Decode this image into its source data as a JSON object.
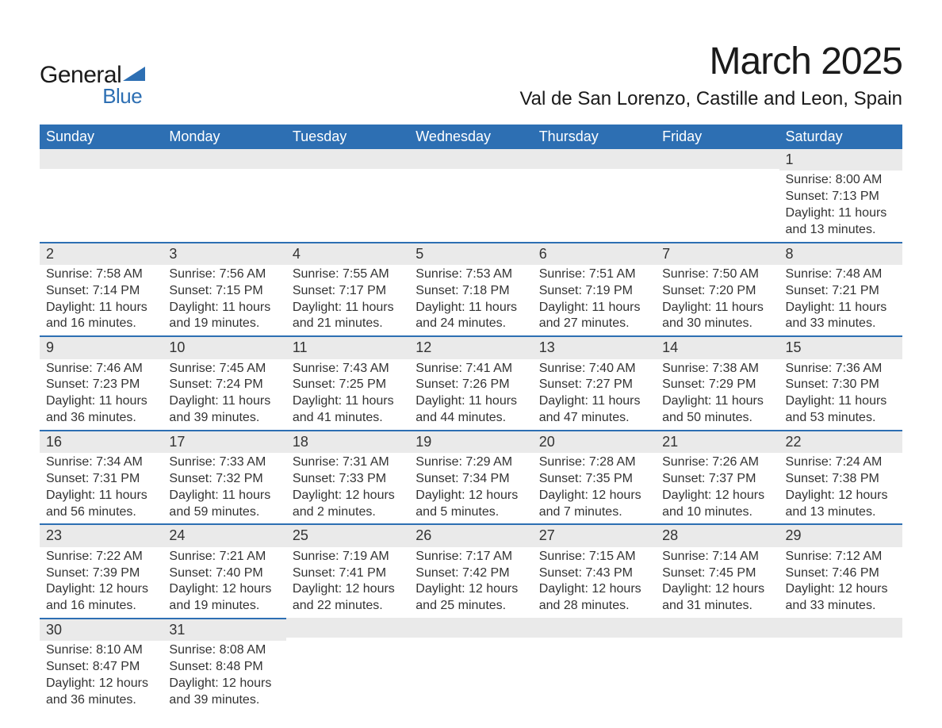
{
  "logo": {
    "text1": "General",
    "text2": "Blue",
    "triangle_color": "#2d6fb3"
  },
  "title": "March 2025",
  "location": "Val de San Lorenzo, Castille and Leon, Spain",
  "colors": {
    "header_bg": "#2d6fb3",
    "header_fg": "#ffffff",
    "daynum_bg": "#eaeaea",
    "day_border": "#2d6fb3",
    "text": "#333333",
    "background": "#ffffff"
  },
  "typography": {
    "title_fontsize": 48,
    "location_fontsize": 24,
    "weekday_fontsize": 18,
    "body_fontsize": 16
  },
  "weekdays": [
    "Sunday",
    "Monday",
    "Tuesday",
    "Wednesday",
    "Thursday",
    "Friday",
    "Saturday"
  ],
  "labels": {
    "sunrise": "Sunrise:",
    "sunset": "Sunset:",
    "daylight": "Daylight:"
  },
  "weeks": [
    [
      {
        "day": "",
        "sunrise": "",
        "sunset": "",
        "daylight": ""
      },
      {
        "day": "",
        "sunrise": "",
        "sunset": "",
        "daylight": ""
      },
      {
        "day": "",
        "sunrise": "",
        "sunset": "",
        "daylight": ""
      },
      {
        "day": "",
        "sunrise": "",
        "sunset": "",
        "daylight": ""
      },
      {
        "day": "",
        "sunrise": "",
        "sunset": "",
        "daylight": ""
      },
      {
        "day": "",
        "sunrise": "",
        "sunset": "",
        "daylight": ""
      },
      {
        "day": "1",
        "sunrise": "8:00 AM",
        "sunset": "7:13 PM",
        "daylight": "11 hours and 13 minutes."
      }
    ],
    [
      {
        "day": "2",
        "sunrise": "7:58 AM",
        "sunset": "7:14 PM",
        "daylight": "11 hours and 16 minutes."
      },
      {
        "day": "3",
        "sunrise": "7:56 AM",
        "sunset": "7:15 PM",
        "daylight": "11 hours and 19 minutes."
      },
      {
        "day": "4",
        "sunrise": "7:55 AM",
        "sunset": "7:17 PM",
        "daylight": "11 hours and 21 minutes."
      },
      {
        "day": "5",
        "sunrise": "7:53 AM",
        "sunset": "7:18 PM",
        "daylight": "11 hours and 24 minutes."
      },
      {
        "day": "6",
        "sunrise": "7:51 AM",
        "sunset": "7:19 PM",
        "daylight": "11 hours and 27 minutes."
      },
      {
        "day": "7",
        "sunrise": "7:50 AM",
        "sunset": "7:20 PM",
        "daylight": "11 hours and 30 minutes."
      },
      {
        "day": "8",
        "sunrise": "7:48 AM",
        "sunset": "7:21 PM",
        "daylight": "11 hours and 33 minutes."
      }
    ],
    [
      {
        "day": "9",
        "sunrise": "7:46 AM",
        "sunset": "7:23 PM",
        "daylight": "11 hours and 36 minutes."
      },
      {
        "day": "10",
        "sunrise": "7:45 AM",
        "sunset": "7:24 PM",
        "daylight": "11 hours and 39 minutes."
      },
      {
        "day": "11",
        "sunrise": "7:43 AM",
        "sunset": "7:25 PM",
        "daylight": "11 hours and 41 minutes."
      },
      {
        "day": "12",
        "sunrise": "7:41 AM",
        "sunset": "7:26 PM",
        "daylight": "11 hours and 44 minutes."
      },
      {
        "day": "13",
        "sunrise": "7:40 AM",
        "sunset": "7:27 PM",
        "daylight": "11 hours and 47 minutes."
      },
      {
        "day": "14",
        "sunrise": "7:38 AM",
        "sunset": "7:29 PM",
        "daylight": "11 hours and 50 minutes."
      },
      {
        "day": "15",
        "sunrise": "7:36 AM",
        "sunset": "7:30 PM",
        "daylight": "11 hours and 53 minutes."
      }
    ],
    [
      {
        "day": "16",
        "sunrise": "7:34 AM",
        "sunset": "7:31 PM",
        "daylight": "11 hours and 56 minutes."
      },
      {
        "day": "17",
        "sunrise": "7:33 AM",
        "sunset": "7:32 PM",
        "daylight": "11 hours and 59 minutes."
      },
      {
        "day": "18",
        "sunrise": "7:31 AM",
        "sunset": "7:33 PM",
        "daylight": "12 hours and 2 minutes."
      },
      {
        "day": "19",
        "sunrise": "7:29 AM",
        "sunset": "7:34 PM",
        "daylight": "12 hours and 5 minutes."
      },
      {
        "day": "20",
        "sunrise": "7:28 AM",
        "sunset": "7:35 PM",
        "daylight": "12 hours and 7 minutes."
      },
      {
        "day": "21",
        "sunrise": "7:26 AM",
        "sunset": "7:37 PM",
        "daylight": "12 hours and 10 minutes."
      },
      {
        "day": "22",
        "sunrise": "7:24 AM",
        "sunset": "7:38 PM",
        "daylight": "12 hours and 13 minutes."
      }
    ],
    [
      {
        "day": "23",
        "sunrise": "7:22 AM",
        "sunset": "7:39 PM",
        "daylight": "12 hours and 16 minutes."
      },
      {
        "day": "24",
        "sunrise": "7:21 AM",
        "sunset": "7:40 PM",
        "daylight": "12 hours and 19 minutes."
      },
      {
        "day": "25",
        "sunrise": "7:19 AM",
        "sunset": "7:41 PM",
        "daylight": "12 hours and 22 minutes."
      },
      {
        "day": "26",
        "sunrise": "7:17 AM",
        "sunset": "7:42 PM",
        "daylight": "12 hours and 25 minutes."
      },
      {
        "day": "27",
        "sunrise": "7:15 AM",
        "sunset": "7:43 PM",
        "daylight": "12 hours and 28 minutes."
      },
      {
        "day": "28",
        "sunrise": "7:14 AM",
        "sunset": "7:45 PM",
        "daylight": "12 hours and 31 minutes."
      },
      {
        "day": "29",
        "sunrise": "7:12 AM",
        "sunset": "7:46 PM",
        "daylight": "12 hours and 33 minutes."
      }
    ],
    [
      {
        "day": "30",
        "sunrise": "8:10 AM",
        "sunset": "8:47 PM",
        "daylight": "12 hours and 36 minutes."
      },
      {
        "day": "31",
        "sunrise": "8:08 AM",
        "sunset": "8:48 PM",
        "daylight": "12 hours and 39 minutes."
      },
      {
        "day": "",
        "sunrise": "",
        "sunset": "",
        "daylight": ""
      },
      {
        "day": "",
        "sunrise": "",
        "sunset": "",
        "daylight": ""
      },
      {
        "day": "",
        "sunrise": "",
        "sunset": "",
        "daylight": ""
      },
      {
        "day": "",
        "sunrise": "",
        "sunset": "",
        "daylight": ""
      },
      {
        "day": "",
        "sunrise": "",
        "sunset": "",
        "daylight": ""
      }
    ]
  ]
}
